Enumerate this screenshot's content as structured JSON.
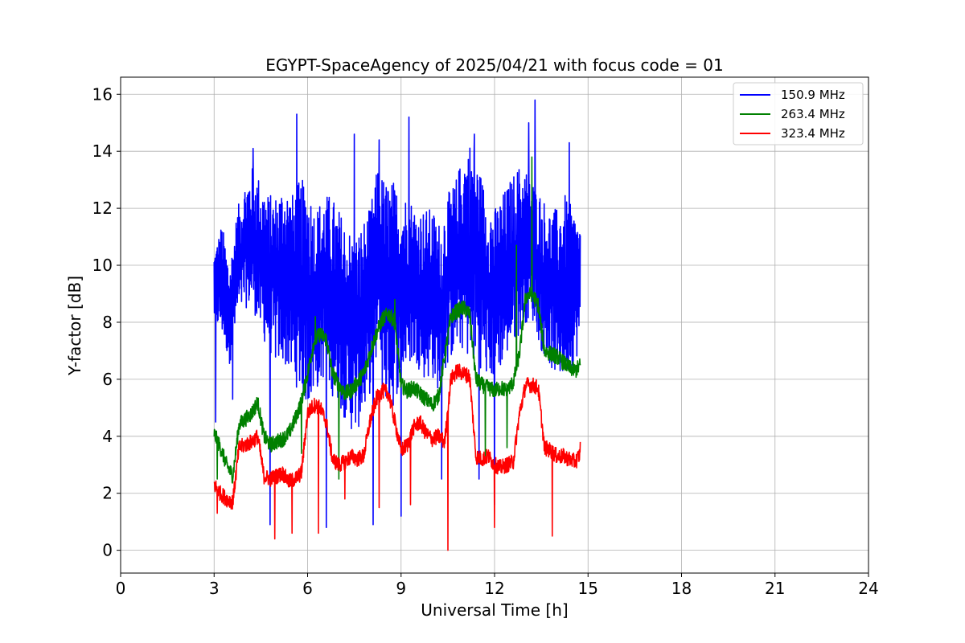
{
  "chart_data": {
    "type": "line",
    "title": "EGYPT-SpaceAgency of 2025/04/21 with focus code = 01",
    "xlabel": "Universal Time [h]",
    "ylabel": "Y-factor [dB]",
    "xlim": [
      0,
      24
    ],
    "ylim": [
      -0.8,
      16.6
    ],
    "xticks": [
      0,
      3,
      6,
      9,
      12,
      15,
      18,
      21,
      24
    ],
    "yticks": [
      0,
      2,
      4,
      6,
      8,
      10,
      12,
      14,
      16
    ],
    "grid": true,
    "legend_position": "top-right",
    "series": [
      {
        "name": "150.9 MHz",
        "color": "#0000ff",
        "x": [
          3.0,
          3.25,
          3.5,
          3.75,
          4.0,
          4.25,
          4.5,
          4.75,
          5.0,
          5.25,
          5.5,
          5.75,
          6.0,
          6.25,
          6.5,
          6.75,
          7.0,
          7.25,
          7.5,
          7.75,
          8.0,
          8.25,
          8.5,
          8.75,
          9.0,
          9.25,
          9.5,
          9.75,
          10.0,
          10.25,
          10.5,
          10.75,
          11.0,
          11.25,
          11.5,
          11.75,
          12.0,
          12.25,
          12.5,
          12.75,
          13.0,
          13.25,
          13.5,
          13.75,
          14.0,
          14.25,
          14.5,
          14.75
        ],
        "low": [
          8.0,
          7.5,
          6.5,
          8.0,
          8.5,
          8.5,
          7.5,
          7.0,
          6.5,
          6.5,
          6.0,
          5.5,
          5.0,
          5.5,
          6.0,
          5.5,
          5.0,
          4.5,
          4.0,
          4.5,
          5.5,
          6.5,
          5.0,
          5.0,
          6.0,
          6.5,
          6.5,
          6.0,
          6.0,
          5.5,
          6.5,
          7.0,
          7.0,
          6.5,
          6.5,
          6.0,
          6.0,
          6.5,
          7.0,
          7.5,
          8.0,
          8.0,
          7.0,
          6.5,
          6.0,
          6.0,
          6.5,
          7.0
        ],
        "high": [
          10.5,
          11.5,
          10.0,
          12.0,
          13.0,
          13.5,
          13.0,
          12.5,
          12.5,
          13.0,
          12.5,
          13.0,
          13.0,
          12.0,
          12.5,
          12.5,
          12.0,
          11.5,
          11.0,
          11.5,
          12.0,
          13.5,
          13.0,
          13.0,
          12.5,
          12.5,
          12.0,
          12.0,
          12.0,
          11.5,
          12.5,
          13.0,
          14.0,
          14.5,
          13.5,
          12.5,
          12.0,
          12.5,
          13.0,
          13.5,
          13.5,
          13.0,
          12.5,
          12.0,
          12.0,
          12.5,
          12.0,
          11.5
        ],
        "spikes": [
          [
            5.65,
            15.3
          ],
          [
            9.25,
            15.2
          ],
          [
            13.3,
            15.8
          ],
          [
            13.1,
            15.0
          ],
          [
            8.3,
            14.4
          ],
          [
            7.5,
            14.6
          ],
          [
            11.35,
            14.6
          ],
          [
            14.4,
            14.3
          ],
          [
            4.25,
            14.1
          ],
          [
            4.8,
            0.9
          ],
          [
            6.6,
            0.8
          ],
          [
            8.1,
            0.9
          ],
          [
            9.0,
            1.2
          ],
          [
            12.0,
            1.6
          ],
          [
            11.5,
            2.5
          ],
          [
            10.3,
            2.5
          ],
          [
            3.05,
            4.5
          ],
          [
            3.6,
            5.3
          ]
        ]
      },
      {
        "name": "263.4 MHz",
        "color": "#008000",
        "x": [
          3.0,
          3.2,
          3.4,
          3.6,
          3.8,
          4.0,
          4.2,
          4.4,
          4.6,
          4.8,
          5.0,
          5.2,
          5.4,
          5.6,
          5.8,
          6.0,
          6.2,
          6.4,
          6.6,
          6.8,
          7.0,
          7.2,
          7.4,
          7.6,
          7.8,
          8.0,
          8.2,
          8.4,
          8.6,
          8.8,
          9.0,
          9.2,
          9.4,
          9.6,
          9.8,
          10.0,
          10.2,
          10.4,
          10.6,
          10.8,
          11.0,
          11.2,
          11.4,
          11.6,
          11.8,
          12.0,
          12.2,
          12.4,
          12.6,
          12.8,
          13.0,
          13.2,
          13.4,
          13.6,
          13.8,
          14.0,
          14.2,
          14.4,
          14.6,
          14.75
        ],
        "y": [
          4.1,
          3.6,
          3.0,
          2.6,
          4.4,
          4.6,
          4.8,
          5.2,
          4.0,
          3.7,
          3.8,
          3.9,
          4.1,
          4.6,
          5.2,
          6.2,
          7.3,
          7.6,
          7.4,
          6.2,
          5.8,
          5.5,
          5.6,
          5.9,
          6.2,
          6.9,
          7.6,
          8.1,
          8.3,
          8.0,
          5.8,
          5.6,
          5.7,
          5.5,
          5.3,
          5.1,
          5.4,
          6.8,
          8.2,
          8.4,
          8.5,
          8.3,
          6.0,
          5.8,
          5.7,
          5.6,
          5.7,
          5.6,
          5.9,
          6.9,
          8.9,
          9.0,
          8.6,
          7.0,
          6.9,
          6.8,
          6.6,
          6.4,
          6.3,
          6.5
        ],
        "spikes": [
          [
            13.2,
            13.8
          ],
          [
            12.7,
            10.7
          ],
          [
            6.25,
            8.2
          ],
          [
            8.8,
            8.8
          ],
          [
            11.7,
            3.2
          ],
          [
            12.4,
            3.6
          ],
          [
            5.8,
            3.4
          ],
          [
            7.0,
            2.5
          ],
          [
            3.1,
            2.5
          ]
        ]
      },
      {
        "name": "323.4 MHz",
        "color": "#ff0000",
        "x": [
          3.0,
          3.2,
          3.4,
          3.6,
          3.8,
          4.0,
          4.2,
          4.4,
          4.6,
          4.8,
          5.0,
          5.2,
          5.4,
          5.6,
          5.8,
          6.0,
          6.2,
          6.4,
          6.6,
          6.8,
          7.0,
          7.2,
          7.4,
          7.6,
          7.8,
          8.0,
          8.2,
          8.4,
          8.6,
          8.8,
          9.0,
          9.2,
          9.4,
          9.6,
          9.8,
          10.0,
          10.2,
          10.4,
          10.6,
          10.8,
          11.0,
          11.2,
          11.4,
          11.6,
          11.8,
          12.0,
          12.2,
          12.4,
          12.6,
          12.8,
          13.0,
          13.2,
          13.4,
          13.6,
          13.8,
          14.0,
          14.2,
          14.4,
          14.6,
          14.75
        ],
        "y": [
          2.3,
          2.0,
          1.8,
          1.7,
          3.6,
          3.7,
          3.8,
          4.0,
          2.6,
          2.5,
          2.6,
          2.7,
          2.4,
          2.5,
          2.7,
          4.8,
          5.1,
          5.0,
          4.5,
          3.2,
          3.0,
          3.1,
          3.3,
          3.2,
          3.3,
          4.5,
          5.3,
          5.6,
          5.5,
          4.5,
          3.5,
          3.7,
          4.3,
          4.5,
          4.1,
          3.9,
          4.0,
          3.8,
          6.0,
          6.3,
          6.2,
          6.1,
          3.3,
          3.2,
          3.3,
          3.0,
          2.9,
          3.0,
          3.1,
          4.8,
          5.8,
          5.8,
          5.7,
          3.6,
          3.5,
          3.3,
          3.3,
          3.2,
          3.1,
          3.4
        ],
        "spikes": [
          [
            10.5,
            0.0
          ],
          [
            12.0,
            0.8
          ],
          [
            13.85,
            0.5
          ],
          [
            4.95,
            0.4
          ],
          [
            5.5,
            0.6
          ],
          [
            6.35,
            0.6
          ],
          [
            7.2,
            1.8
          ],
          [
            8.3,
            1.5
          ],
          [
            9.3,
            1.6
          ],
          [
            3.1,
            1.3
          ],
          [
            14.75,
            3.8
          ]
        ]
      }
    ]
  }
}
